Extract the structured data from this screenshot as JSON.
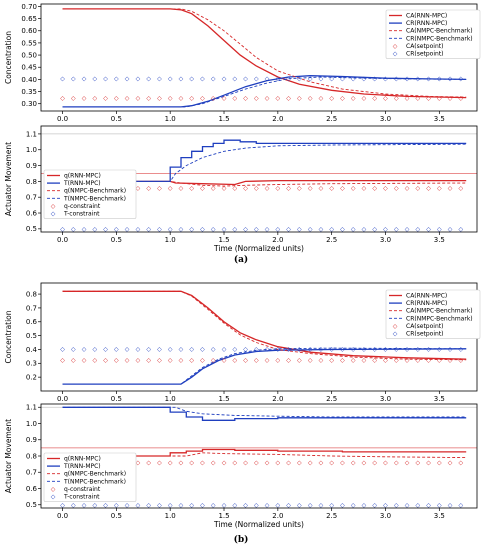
{
  "figure": {
    "panel_letters": [
      "(a)",
      "(b)"
    ]
  },
  "colors": {
    "red": "#d62728",
    "blue": "#1f3fbf",
    "gray": "#b0b0b0"
  },
  "chart_data": [
    {
      "type": "line",
      "panel": "a-top",
      "xlabel": "",
      "ylabel": "Concentration",
      "xlim": [
        -0.2,
        3.85
      ],
      "ylim": [
        0.27,
        0.71
      ],
      "xticks": [
        "0.0",
        "0.5",
        "1.0",
        "1.5",
        "2.0",
        "2.5",
        "3.0",
        "3.5"
      ],
      "yticks": [
        "0.30",
        "0.35",
        "0.40",
        "0.45",
        "0.50",
        "0.55",
        "0.60",
        "0.65",
        "0.70"
      ],
      "legend_position": "top-right",
      "series": [
        {
          "name": "CA(RNN-MPC)",
          "color": "red",
          "style": "solid",
          "points": [
            [
              0,
              0.69
            ],
            [
              1.0,
              0.69
            ],
            [
              1.1,
              0.686
            ],
            [
              1.2,
              0.67
            ],
            [
              1.35,
              0.62
            ],
            [
              1.5,
              0.56
            ],
            [
              1.65,
              0.5
            ],
            [
              1.8,
              0.455
            ],
            [
              2.0,
              0.41
            ],
            [
              2.2,
              0.38
            ],
            [
              2.5,
              0.355
            ],
            [
              2.8,
              0.34
            ],
            [
              3.2,
              0.33
            ],
            [
              3.75,
              0.325
            ]
          ]
        },
        {
          "name": "CR(RNN-MPC)",
          "color": "blue",
          "style": "solid",
          "points": [
            [
              0,
              0.287
            ],
            [
              1.1,
              0.287
            ],
            [
              1.2,
              0.292
            ],
            [
              1.35,
              0.31
            ],
            [
              1.5,
              0.335
            ],
            [
              1.7,
              0.37
            ],
            [
              1.9,
              0.395
            ],
            [
              2.1,
              0.41
            ],
            [
              2.3,
              0.415
            ],
            [
              2.6,
              0.412
            ],
            [
              3.0,
              0.405
            ],
            [
              3.4,
              0.402
            ],
            [
              3.75,
              0.4
            ]
          ]
        },
        {
          "name": "CA(NMPC-Benchmark)",
          "color": "red",
          "style": "dashed",
          "points": [
            [
              0,
              0.69
            ],
            [
              1.1,
              0.69
            ],
            [
              1.2,
              0.68
            ],
            [
              1.35,
              0.645
            ],
            [
              1.5,
              0.6
            ],
            [
              1.65,
              0.545
            ],
            [
              1.8,
              0.49
            ],
            [
              2.0,
              0.435
            ],
            [
              2.3,
              0.39
            ],
            [
              2.6,
              0.36
            ],
            [
              3.0,
              0.34
            ],
            [
              3.4,
              0.33
            ],
            [
              3.75,
              0.327
            ]
          ]
        },
        {
          "name": "CR(NMPC-Benchmark)",
          "color": "blue",
          "style": "dashed",
          "points": [
            [
              0,
              0.287
            ],
            [
              1.15,
              0.287
            ],
            [
              1.3,
              0.3
            ],
            [
              1.5,
              0.33
            ],
            [
              1.7,
              0.36
            ],
            [
              1.9,
              0.385
            ],
            [
              2.1,
              0.403
            ],
            [
              2.4,
              0.41
            ],
            [
              2.8,
              0.405
            ],
            [
              3.2,
              0.402
            ],
            [
              3.75,
              0.4
            ]
          ]
        },
        {
          "name": "CA(setpoint)",
          "color": "red",
          "style": "markers",
          "y": 0.325
        },
        {
          "name": "CR(setpoint)",
          "color": "blue",
          "style": "markers",
          "y": 0.405
        }
      ]
    },
    {
      "type": "line",
      "panel": "a-bottom",
      "xlabel": "Time (Normalized units)",
      "ylabel": "Actuator Movement",
      "xlim": [
        -0.2,
        3.85
      ],
      "ylim": [
        0.48,
        1.15
      ],
      "xticks": [
        "0.0",
        "0.5",
        "1.0",
        "1.5",
        "2.0",
        "2.5",
        "3.0",
        "3.5"
      ],
      "yticks": [
        "0.5",
        "0.6",
        "0.7",
        "0.8",
        "0.9",
        "1.0",
        "1.1"
      ],
      "legend_position": "left",
      "series": [
        {
          "name": "q(RNN-MPC)",
          "color": "red",
          "style": "solid",
          "points": [
            [
              0,
              0.8
            ],
            [
              1.0,
              0.8
            ],
            [
              1.05,
              0.79
            ],
            [
              1.3,
              0.785
            ],
            [
              1.6,
              0.78
            ],
            [
              1.7,
              0.8
            ],
            [
              2.0,
              0.805
            ],
            [
              3.75,
              0.805
            ]
          ]
        },
        {
          "name": "T(RNN-MPC)",
          "color": "blue",
          "style": "step",
          "points": [
            [
              0,
              0.8
            ],
            [
              1.0,
              0.8
            ],
            [
              1.0,
              0.89
            ],
            [
              1.1,
              0.89
            ],
            [
              1.1,
              0.95
            ],
            [
              1.2,
              0.95
            ],
            [
              1.2,
              0.99
            ],
            [
              1.3,
              0.99
            ],
            [
              1.3,
              1.02
            ],
            [
              1.4,
              1.02
            ],
            [
              1.4,
              1.04
            ],
            [
              1.5,
              1.04
            ],
            [
              1.5,
              1.06
            ],
            [
              1.65,
              1.06
            ],
            [
              1.65,
              1.05
            ],
            [
              1.8,
              1.05
            ],
            [
              1.8,
              1.04
            ],
            [
              3.75,
              1.04
            ]
          ]
        },
        {
          "name": "q(NMPC-Benchmark)",
          "color": "red",
          "style": "dashed",
          "points": [
            [
              0,
              0.8
            ],
            [
              1.0,
              0.8
            ],
            [
              1.1,
              0.79
            ],
            [
              1.3,
              0.775
            ],
            [
              1.5,
              0.77
            ],
            [
              1.7,
              0.775
            ],
            [
              2.0,
              0.78
            ],
            [
              2.5,
              0.785
            ],
            [
              3.75,
              0.79
            ]
          ]
        },
        {
          "name": "T(NMPC-Benchmark)",
          "color": "blue",
          "style": "dashed",
          "points": [
            [
              0,
              0.8
            ],
            [
              1.0,
              0.8
            ],
            [
              1.05,
              0.85
            ],
            [
              1.15,
              0.9
            ],
            [
              1.3,
              0.95
            ],
            [
              1.5,
              0.99
            ],
            [
              1.7,
              1.01
            ],
            [
              2.0,
              1.025
            ],
            [
              2.5,
              1.03
            ],
            [
              3.75,
              1.035
            ]
          ]
        },
        {
          "name": "q-constraint",
          "color": "red",
          "style": "markers",
          "y": 0.76
        },
        {
          "name": "T-constraint",
          "color": "blue",
          "style": "markers",
          "y": 0.5
        }
      ],
      "reference_lines": [
        {
          "color": "gray",
          "y": 1.1
        },
        {
          "color": "red",
          "y": 0.85
        }
      ]
    },
    {
      "type": "line",
      "panel": "b-top",
      "xlabel": "",
      "ylabel": "Concentration",
      "xlim": [
        -0.2,
        3.85
      ],
      "ylim": [
        0.1,
        0.88
      ],
      "xticks": [
        "0.0",
        "0.5",
        "1.0",
        "1.5",
        "2.0",
        "2.5",
        "3.0",
        "3.5"
      ],
      "yticks": [
        "0.2",
        "0.3",
        "0.4",
        "0.5",
        "0.6",
        "0.7",
        "0.8"
      ],
      "legend_position": "top-right",
      "series": [
        {
          "name": "CA(RNN-MPC)",
          "color": "red",
          "style": "solid",
          "points": [
            [
              0,
              0.82
            ],
            [
              1.1,
              0.82
            ],
            [
              1.2,
              0.79
            ],
            [
              1.35,
              0.7
            ],
            [
              1.5,
              0.6
            ],
            [
              1.65,
              0.52
            ],
            [
              1.8,
              0.47
            ],
            [
              2.0,
              0.42
            ],
            [
              2.3,
              0.38
            ],
            [
              2.7,
              0.355
            ],
            [
              3.2,
              0.34
            ],
            [
              3.75,
              0.33
            ]
          ]
        },
        {
          "name": "CR(RNN-MPC)",
          "color": "blue",
          "style": "solid",
          "points": [
            [
              0,
              0.15
            ],
            [
              1.1,
              0.15
            ],
            [
              1.2,
              0.2
            ],
            [
              1.3,
              0.26
            ],
            [
              1.45,
              0.32
            ],
            [
              1.6,
              0.36
            ],
            [
              1.8,
              0.385
            ],
            [
              2.0,
              0.395
            ],
            [
              2.5,
              0.4
            ],
            [
              3.0,
              0.402
            ],
            [
              3.75,
              0.405
            ]
          ]
        },
        {
          "name": "CA(NMPC-Benchmark)",
          "color": "red",
          "style": "dashed",
          "points": [
            [
              0,
              0.82
            ],
            [
              1.1,
              0.82
            ],
            [
              1.2,
              0.785
            ],
            [
              1.35,
              0.69
            ],
            [
              1.5,
              0.59
            ],
            [
              1.65,
              0.505
            ],
            [
              1.8,
              0.45
            ],
            [
              2.0,
              0.4
            ],
            [
              2.3,
              0.37
            ],
            [
              2.7,
              0.345
            ],
            [
              3.2,
              0.33
            ],
            [
              3.75,
              0.325
            ]
          ]
        },
        {
          "name": "CR(NMPC-Benchmark)",
          "color": "blue",
          "style": "dashed",
          "points": [
            [
              0,
              0.15
            ],
            [
              1.1,
              0.15
            ],
            [
              1.2,
              0.21
            ],
            [
              1.3,
              0.27
            ],
            [
              1.45,
              0.33
            ],
            [
              1.6,
              0.37
            ],
            [
              1.8,
              0.395
            ],
            [
              2.0,
              0.405
            ],
            [
              2.5,
              0.41
            ],
            [
              3.0,
              0.408
            ],
            [
              3.75,
              0.405
            ]
          ]
        },
        {
          "name": "CA(setpoint)",
          "color": "red",
          "style": "markers",
          "y": 0.325
        },
        {
          "name": "CR(setpoint)",
          "color": "blue",
          "style": "markers",
          "y": 0.405
        }
      ]
    },
    {
      "type": "line",
      "panel": "b-bottom",
      "xlabel": "Time (Normalized units)",
      "ylabel": "Actuator Movement",
      "xlim": [
        -0.2,
        3.85
      ],
      "ylim": [
        0.48,
        1.12
      ],
      "xticks": [
        "0.0",
        "0.5",
        "1.0",
        "1.5",
        "2.0",
        "2.5",
        "3.0",
        "3.5"
      ],
      "yticks": [
        "0.5",
        "0.6",
        "0.7",
        "0.8",
        "0.9",
        "1.0",
        "1.1"
      ],
      "legend_position": "left",
      "series": [
        {
          "name": "q(RNN-MPC)",
          "color": "red",
          "style": "step",
          "points": [
            [
              0,
              0.8
            ],
            [
              1.0,
              0.8
            ],
            [
              1.0,
              0.82
            ],
            [
              1.15,
              0.82
            ],
            [
              1.15,
              0.83
            ],
            [
              1.3,
              0.83
            ],
            [
              1.3,
              0.84
            ],
            [
              1.6,
              0.84
            ],
            [
              1.6,
              0.835
            ],
            [
              2.0,
              0.835
            ],
            [
              2.0,
              0.83
            ],
            [
              2.6,
              0.83
            ],
            [
              2.6,
              0.825
            ],
            [
              3.75,
              0.825
            ]
          ]
        },
        {
          "name": "T(RNN-MPC)",
          "color": "blue",
          "style": "step",
          "points": [
            [
              0,
              1.1
            ],
            [
              1.0,
              1.1
            ],
            [
              1.0,
              1.07
            ],
            [
              1.15,
              1.07
            ],
            [
              1.15,
              1.04
            ],
            [
              1.3,
              1.04
            ],
            [
              1.3,
              1.02
            ],
            [
              1.6,
              1.02
            ],
            [
              1.6,
              1.03
            ],
            [
              2.0,
              1.03
            ],
            [
              2.0,
              1.035
            ],
            [
              3.75,
              1.035
            ]
          ]
        },
        {
          "name": "q(NMPC-Benchmark)",
          "color": "red",
          "style": "dashed",
          "points": [
            [
              0,
              0.8
            ],
            [
              1.0,
              0.8
            ],
            [
              1.15,
              0.8
            ],
            [
              1.3,
              0.82
            ],
            [
              1.5,
              0.815
            ],
            [
              2.0,
              0.81
            ],
            [
              2.5,
              0.8
            ],
            [
              3.0,
              0.795
            ],
            [
              3.75,
              0.79
            ]
          ]
        },
        {
          "name": "T(NMPC-Benchmark)",
          "color": "blue",
          "style": "dashed",
          "points": [
            [
              0,
              1.1
            ],
            [
              1.05,
              1.1
            ],
            [
              1.15,
              1.075
            ],
            [
              1.3,
              1.06
            ],
            [
              1.6,
              1.05
            ],
            [
              2.0,
              1.045
            ],
            [
              2.5,
              1.04
            ],
            [
              3.75,
              1.04
            ]
          ]
        },
        {
          "name": "q-constraint",
          "color": "red",
          "style": "markers",
          "y": 0.76
        },
        {
          "name": "T-constraint",
          "color": "blue",
          "style": "markers",
          "y": 0.5
        }
      ],
      "reference_lines": [
        {
          "color": "gray",
          "y": 1.1
        },
        {
          "color": "red",
          "y": 0.85
        }
      ]
    }
  ]
}
